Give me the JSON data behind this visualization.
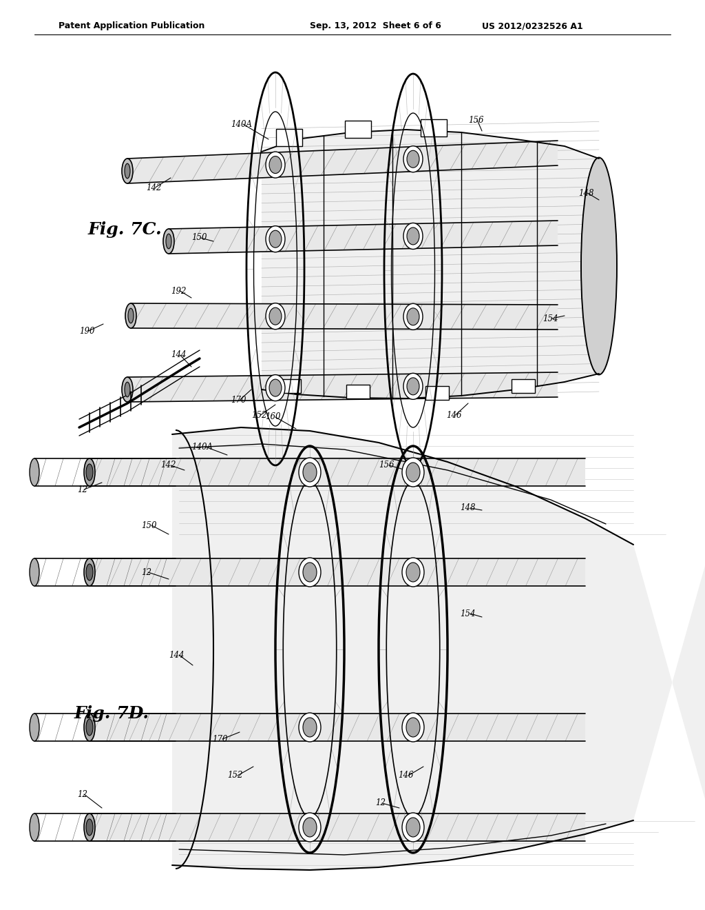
{
  "bg_color": "#ffffff",
  "header_text": "Patent Application Publication",
  "header_date": "Sep. 13, 2012  Sheet 6 of 6",
  "header_patent": "US 2012/0232526 A1",
  "fig7c_label": "Fig. 7C.",
  "fig7d_label": "Fig. 7D."
}
